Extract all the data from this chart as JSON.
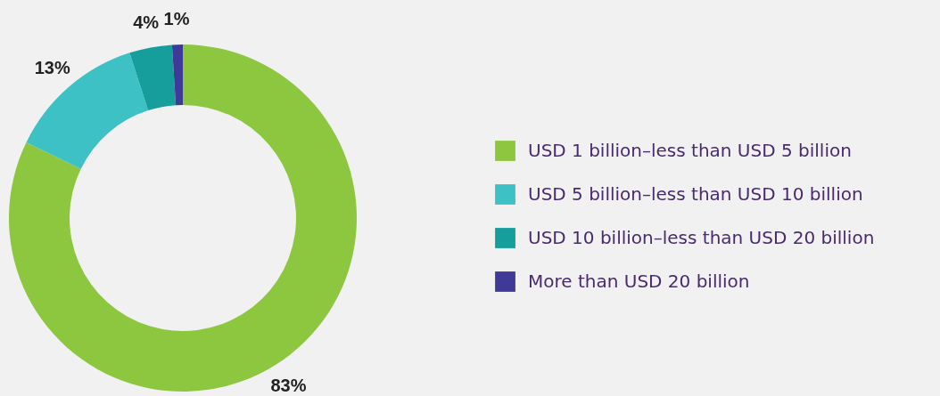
{
  "chart_data": {
    "type": "donut",
    "categories": [
      "USD 1 billion–less than USD 5 billion",
      "USD 5 billion–less than USD 10 billion",
      "USD 10 billion–less than USD 20 billion",
      "More than USD 20 billion"
    ],
    "values": [
      83,
      13,
      4,
      1
    ],
    "colors": [
      "#8dc63f",
      "#3ec1c4",
      "#169e9c",
      "#3f3a97"
    ],
    "value_labels": [
      "83%",
      "13%",
      "4%",
      "1%"
    ],
    "legend": "right"
  }
}
